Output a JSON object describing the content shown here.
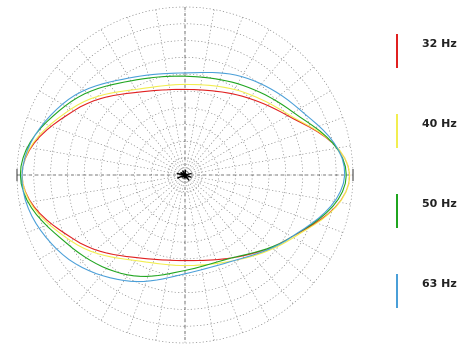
{
  "chart_data": {
    "type": "polar-line",
    "title": "",
    "grid": true,
    "legend_position": "right",
    "radial_range": [
      0,
      1
    ],
    "angle_unit": "degrees",
    "angles": [
      0,
      30,
      60,
      90,
      120,
      150,
      180,
      210,
      240,
      270,
      300,
      330
    ],
    "series": [
      {
        "name": "32 Hz",
        "color": "#e02020",
        "values": [
          1.0,
          0.72,
          0.57,
          0.52,
          0.58,
          0.78,
          0.99,
          0.78,
          0.58,
          0.52,
          0.58,
          0.75
        ]
      },
      {
        "name": "40 Hz",
        "color": "#f2ee50",
        "values": [
          1.0,
          0.73,
          0.6,
          0.55,
          0.6,
          0.8,
          0.99,
          0.8,
          0.6,
          0.55,
          0.6,
          0.76
        ]
      },
      {
        "name": "50 Hz",
        "color": "#1fa51f",
        "values": [
          0.98,
          0.76,
          0.64,
          0.6,
          0.66,
          0.84,
          1.0,
          0.83,
          0.7,
          0.58,
          0.58,
          0.75
        ]
      },
      {
        "name": "63 Hz",
        "color": "#4a9fd8",
        "values": [
          0.97,
          0.8,
          0.69,
          0.62,
          0.68,
          0.86,
          0.99,
          0.9,
          0.74,
          0.6,
          0.6,
          0.75
        ]
      }
    ]
  }
}
